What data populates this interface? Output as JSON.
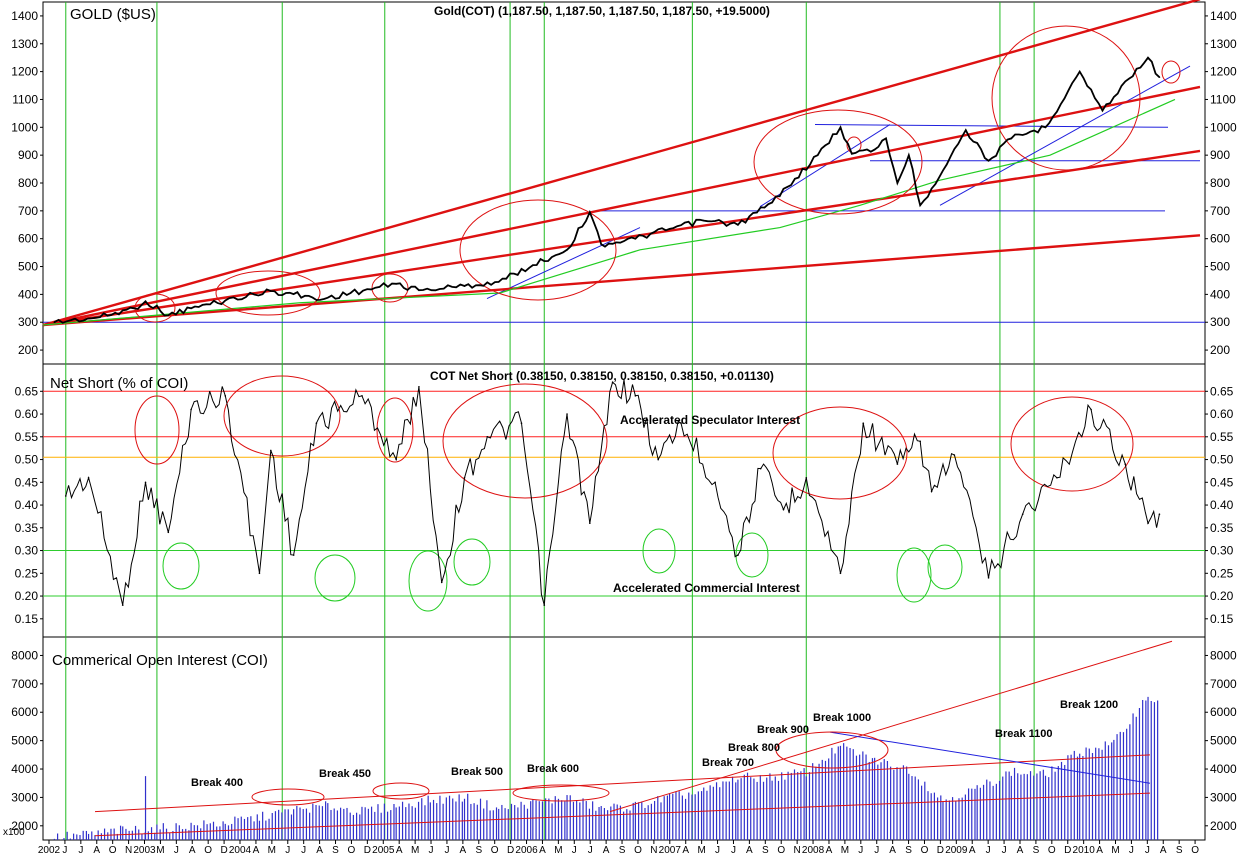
{
  "panels": {
    "gold": {
      "title": "GOLD ($US)",
      "header": "Gold(COT) (1,187.50, 1,187.50, 1,187.50, 1,187.50, +19.5000)",
      "ylim": [
        150,
        1450
      ],
      "ticks": [
        200,
        300,
        400,
        500,
        600,
        700,
        800,
        900,
        1000,
        1100,
        1200,
        1300,
        1400
      ]
    },
    "cot": {
      "title": "Net Short (% of COI)",
      "header": "COT Net Short (0.38150, 0.38150, 0.38150, 0.38150, +0.01130)",
      "ylim": [
        0.11,
        0.71
      ],
      "ticks": [
        0.15,
        0.2,
        0.25,
        0.3,
        0.35,
        0.4,
        0.45,
        0.5,
        0.55,
        0.6,
        0.65
      ],
      "tick_labels": [
        "0.15",
        "0.20",
        "0.25",
        "0.30",
        "0.35",
        "0.40",
        "0.45",
        "0.50",
        "0.55",
        "0.60",
        "0.65"
      ],
      "annotations": [
        "Accelerated Speculator Interest",
        "Accelerated Commercial Interest"
      ],
      "levels": [
        {
          "value": 0.65,
          "color": "#ff2020"
        },
        {
          "value": 0.55,
          "color": "#ff2020"
        },
        {
          "value": 0.505,
          "color": "#ffb000"
        },
        {
          "value": 0.3,
          "color": "#2ecc2e"
        },
        {
          "value": 0.2,
          "color": "#2ecc2e"
        }
      ]
    },
    "coi": {
      "title": "Commerical Open Interest (COI)",
      "unit": "x100",
      "ylim": [
        1500,
        8650
      ],
      "ticks": [
        2000,
        3000,
        4000,
        5000,
        6000,
        7000,
        8000
      ],
      "breaks": [
        "Break 400",
        "Break 450",
        "Break 500",
        "Break 600",
        "Break 700",
        "Break 800",
        "Break 900",
        "Break 1000",
        "Break 1100",
        "Break 1200"
      ]
    }
  },
  "x_axis": {
    "labels": [
      "2002",
      "J",
      "J",
      "A",
      "O",
      "N",
      "2003",
      "M",
      "J",
      "A",
      "O",
      "D",
      "2004",
      "A",
      "M",
      "J",
      "J",
      "A",
      "S",
      "O",
      "D",
      "2005",
      "A",
      "M",
      "J",
      "J",
      "A",
      "S",
      "O",
      "D",
      "2006",
      "A",
      "M",
      "J",
      "J",
      "A",
      "S",
      "O",
      "N",
      "2007",
      "A",
      "M",
      "J",
      "J",
      "A",
      "S",
      "O",
      "N",
      "2008",
      "A",
      "M",
      "J",
      "J",
      "A",
      "S",
      "O",
      "D",
      "2009",
      "A",
      "J",
      "J",
      "A",
      "S",
      "O",
      "D",
      "2010",
      "A",
      "M",
      "J",
      "J",
      "A",
      "S",
      "O"
    ]
  },
  "chart_data": [
    {
      "type": "line",
      "title": "GOLD ($US)",
      "ylim": [
        150,
        1450
      ],
      "x": [
        "2002-06",
        "2002-10",
        "2003-01",
        "2003-02",
        "2003-04",
        "2003-06",
        "2003-09",
        "2004-01",
        "2004-04",
        "2004-05",
        "2004-08",
        "2004-12",
        "2005-02",
        "2005-06",
        "2005-09",
        "2005-12",
        "2006-03",
        "2006-05",
        "2006-06",
        "2006-09",
        "2006-12",
        "2007-03",
        "2007-06",
        "2007-09",
        "2007-11",
        "2008-01",
        "2008-03",
        "2008-04",
        "2008-06",
        "2008-07",
        "2008-08",
        "2008-09",
        "2008-10",
        "2008-11",
        "2009-02",
        "2009-04",
        "2009-06",
        "2009-09",
        "2009-12",
        "2010-02",
        "2010-05",
        "2010-06",
        "2010-07"
      ],
      "series": [
        {
          "name": "Gold",
          "values": [
            300,
            318,
            350,
            375,
            325,
            350,
            378,
            412,
            395,
            380,
            405,
            438,
            415,
            430,
            445,
            505,
            560,
            695,
            580,
            600,
            635,
            665,
            650,
            730,
            815,
            900,
            1000,
            905,
            920,
            960,
            800,
            900,
            720,
            780,
            990,
            880,
            960,
            1000,
            1200,
            1060,
            1210,
            1250,
            1180
          ]
        }
      ]
    },
    {
      "type": "line",
      "title": "Net Short (% of COI)",
      "ylim": [
        0.11,
        0.71
      ],
      "x": [
        "2002-07",
        "2002-09",
        "2002-12",
        "2003-02",
        "2003-04",
        "2003-06",
        "2003-09",
        "2003-12",
        "2004-01",
        "2004-03",
        "2004-05",
        "2004-09",
        "2004-12",
        "2005-02",
        "2005-04",
        "2005-06",
        "2005-08",
        "2005-11",
        "2006-01",
        "2006-03",
        "2006-05",
        "2006-07",
        "2006-09",
        "2006-11",
        "2007-01",
        "2007-04",
        "2007-06",
        "2007-08",
        "2007-10",
        "2007-12",
        "2008-03",
        "2008-05",
        "2008-08",
        "2008-10",
        "2008-11",
        "2009-01",
        "2009-04",
        "2009-07",
        "2009-10",
        "2010-01",
        "2010-04",
        "2010-06",
        "2010-07"
      ],
      "series": [
        {
          "name": "COT Net Short",
          "values": [
            0.42,
            0.46,
            0.18,
            0.45,
            0.34,
            0.61,
            0.64,
            0.25,
            0.52,
            0.29,
            0.58,
            0.64,
            0.5,
            0.66,
            0.23,
            0.46,
            0.55,
            0.58,
            0.18,
            0.6,
            0.36,
            0.67,
            0.64,
            0.5,
            0.58,
            0.45,
            0.29,
            0.48,
            0.39,
            0.46,
            0.25,
            0.58,
            0.49,
            0.54,
            0.43,
            0.51,
            0.24,
            0.38,
            0.46,
            0.61,
            0.49,
            0.36,
            0.38
          ]
        }
      ]
    },
    {
      "type": "bar",
      "title": "Commerical Open Interest (COI)",
      "ylim": [
        1500,
        8650
      ],
      "x": [
        "2002-06",
        "2002-09",
        "2002-12",
        "2003-03",
        "2003-06",
        "2003-09",
        "2003-12",
        "2004-03",
        "2004-06",
        "2004-09",
        "2004-12",
        "2005-03",
        "2005-06",
        "2005-09",
        "2005-12",
        "2006-03",
        "2006-06",
        "2006-09",
        "2006-12",
        "2007-03",
        "2007-06",
        "2007-09",
        "2007-12",
        "2008-03",
        "2008-06",
        "2008-09",
        "2008-12",
        "2009-03",
        "2009-06",
        "2009-09",
        "2009-12",
        "2010-03",
        "2010-06",
        "2010-07"
      ],
      "series": [
        {
          "name": "COI",
          "values": [
            1600,
            1700,
            1850,
            1900,
            2000,
            2100,
            2300,
            2550,
            2700,
            2500,
            2700,
            2900,
            3000,
            2600,
            2800,
            3000,
            2600,
            2700,
            3000,
            3200,
            3700,
            3700,
            3900,
            4800,
            4300,
            4000,
            2900,
            3300,
            3900,
            3800,
            4600,
            4900,
            6600,
            6300
          ]
        }
      ]
    }
  ]
}
